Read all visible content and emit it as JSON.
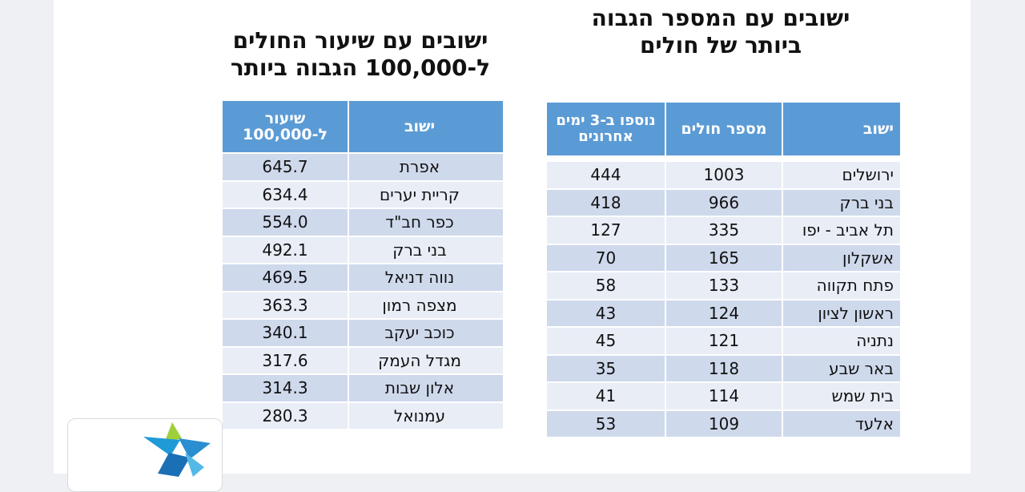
{
  "left_section": {
    "title_line1": "ישובים  עם שיעור החולים",
    "title_line2": "ל-100,000 הגבוה ביותר",
    "headers": {
      "name": "ישוב",
      "rate": "שיעור ל-100,000"
    },
    "rows": [
      {
        "name": "אפרת",
        "rate": "645.7"
      },
      {
        "name": "קריית יערים",
        "rate": "634.4"
      },
      {
        "name": "כפר חב\"ד",
        "rate": "554.0"
      },
      {
        "name": "בני ברק",
        "rate": "492.1"
      },
      {
        "name": "נווה דניאל",
        "rate": "469.5"
      },
      {
        "name": "מצפה רמון",
        "rate": "363.3"
      },
      {
        "name": "כוכב יעקב",
        "rate": "340.1"
      },
      {
        "name": "מגדל העמק",
        "rate": "317.6"
      },
      {
        "name": "אלון שבות",
        "rate": "314.3"
      },
      {
        "name": "עמנואל",
        "rate": "280.3"
      }
    ]
  },
  "right_section": {
    "title_line1": "ישובים עם המספר הגבוה",
    "title_line2": "ביותר של חולים",
    "headers": {
      "name": "ישוב",
      "cases": "מספר חולים",
      "new": "נוספו ב-3 ימים אחרונים"
    },
    "rows": [
      {
        "name": "ירושלים",
        "cases": "1003",
        "new": "444"
      },
      {
        "name": "בני ברק",
        "cases": "966",
        "new": "418"
      },
      {
        "name": "תל אביב - יפו",
        "cases": "335",
        "new": "127"
      },
      {
        "name": "אשקלון",
        "cases": "165",
        "new": "70"
      },
      {
        "name": "פתח תקווה",
        "cases": "133",
        "new": "58"
      },
      {
        "name": "ראשון לציון",
        "cases": "124",
        "new": "43"
      },
      {
        "name": "נתניה",
        "cases": "121",
        "new": "45"
      },
      {
        "name": "באר שבע",
        "cases": "118",
        "new": "35"
      },
      {
        "name": "בית שמש",
        "cases": "114",
        "new": "41"
      },
      {
        "name": "אלעד",
        "cases": "109",
        "new": "53"
      }
    ]
  },
  "colors": {
    "header_blue": "#5b9bd5",
    "row_dark": "#cfd9ec",
    "row_light": "#e8edf6"
  },
  "logo": {
    "icon": "star-logo-icon"
  }
}
